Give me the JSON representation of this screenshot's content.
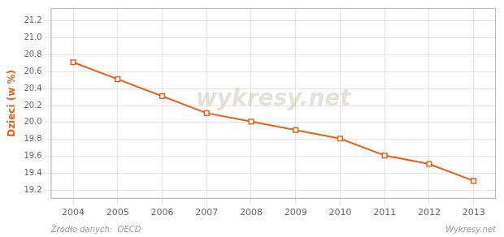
{
  "chart_data": {
    "type": "line",
    "ylabel": "Dzieci (w %)",
    "annotations": [
      "wykresy.net",
      "Źródło danych:  OECD",
      "Wykresy.net"
    ],
    "x": [
      2004,
      2005,
      2006,
      2007,
      2008,
      2009,
      2010,
      2011,
      2012,
      2013
    ],
    "values": [
      20.71,
      20.51,
      20.31,
      20.11,
      20.01,
      19.91,
      19.81,
      19.61,
      19.51,
      19.31
    ],
    "color": "#E8611A",
    "marker": "square",
    "xlim": [
      2003.5,
      2013.5
    ],
    "xticks": [
      2004,
      2005,
      2006,
      2007,
      2008,
      2009,
      2010,
      2011,
      2012,
      2013
    ],
    "ylim": [
      19.1,
      21.35
    ],
    "yticks": [
      19.2,
      19.4,
      19.6,
      19.8,
      {
        "value": 20.0,
        "label": "20.0"
      },
      20.2,
      20.4,
      20.6,
      20.8,
      {
        "value": 21.0,
        "label": "21.0"
      },
      21.2
    ],
    "grid": true
  }
}
